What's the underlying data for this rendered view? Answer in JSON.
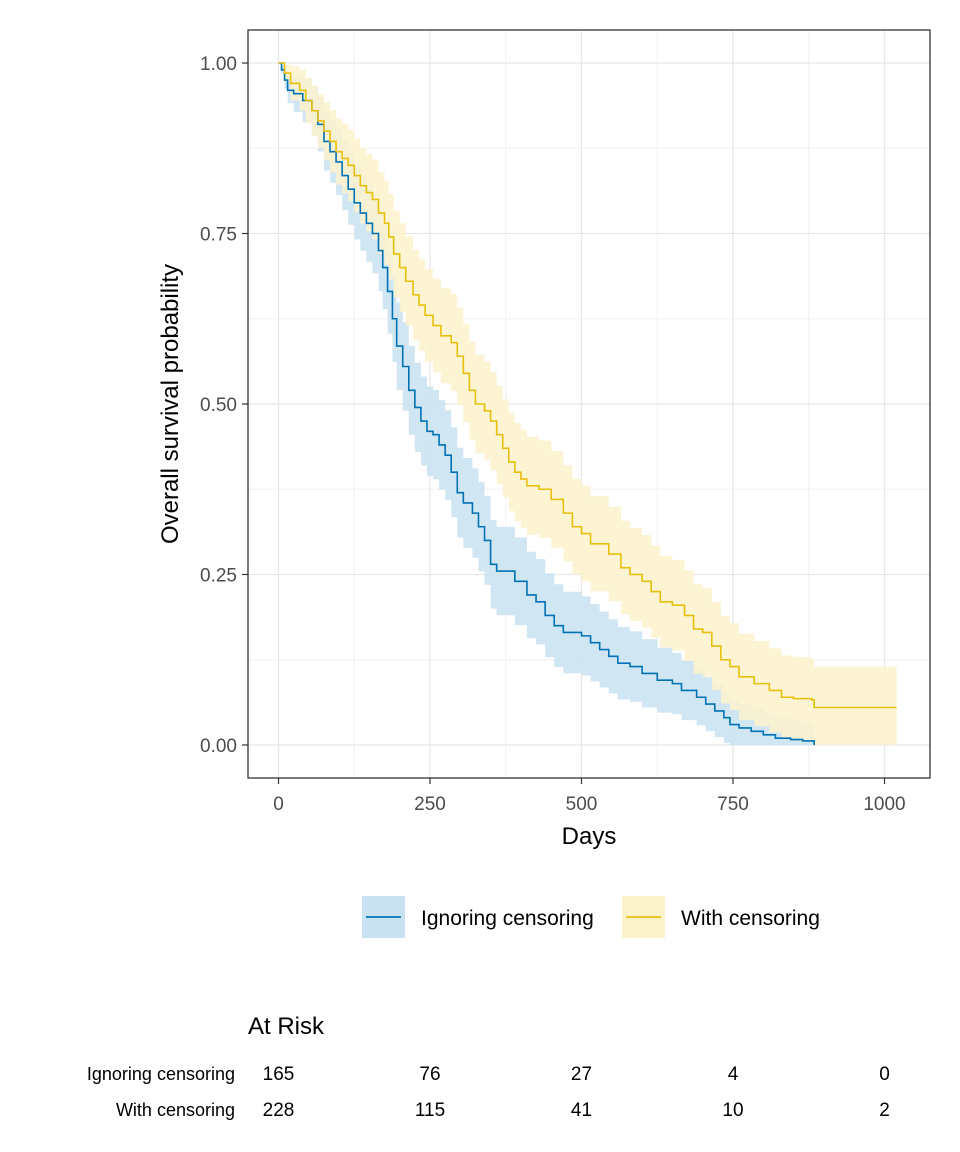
{
  "chart_data": {
    "type": "line",
    "subtype": "kaplan-meier step curves with confidence bands",
    "xlabel": "Days",
    "ylabel": "Overall survival probability",
    "xlim": [
      -10,
      1080
    ],
    "ylim": [
      -0.048,
      1.048
    ],
    "x_ticks": [
      0,
      250,
      500,
      750,
      1000
    ],
    "x_tick_labels": [
      "0",
      "250",
      "500",
      "750",
      "1000"
    ],
    "y_ticks": [
      0,
      0.25,
      0.5,
      0.75,
      1
    ],
    "y_tick_labels": [
      "0.00",
      "0.25",
      "0.50",
      "0.75",
      "1.00"
    ],
    "grid": true,
    "legend_position": "bottom",
    "series": [
      {
        "name": "Ignoring censoring",
        "color": "#0072B5",
        "band_color": "#C9E2F1",
        "points": [
          [
            0,
            1.0
          ],
          [
            5,
            0.99
          ],
          [
            10,
            0.975
          ],
          [
            15,
            0.96
          ],
          [
            25,
            0.955
          ],
          [
            40,
            0.945
          ],
          [
            55,
            0.93
          ],
          [
            65,
            0.91
          ],
          [
            75,
            0.885
          ],
          [
            85,
            0.87
          ],
          [
            95,
            0.855
          ],
          [
            105,
            0.835
          ],
          [
            115,
            0.815
          ],
          [
            125,
            0.795
          ],
          [
            135,
            0.78
          ],
          [
            145,
            0.765
          ],
          [
            155,
            0.75
          ],
          [
            165,
            0.725
          ],
          [
            172,
            0.7
          ],
          [
            180,
            0.665
          ],
          [
            188,
            0.625
          ],
          [
            195,
            0.585
          ],
          [
            205,
            0.555
          ],
          [
            215,
            0.52
          ],
          [
            225,
            0.495
          ],
          [
            235,
            0.475
          ],
          [
            245,
            0.46
          ],
          [
            255,
            0.455
          ],
          [
            265,
            0.44
          ],
          [
            275,
            0.425
          ],
          [
            285,
            0.4
          ],
          [
            295,
            0.37
          ],
          [
            305,
            0.355
          ],
          [
            320,
            0.34
          ],
          [
            330,
            0.32
          ],
          [
            340,
            0.3
          ],
          [
            350,
            0.265
          ],
          [
            360,
            0.255
          ],
          [
            390,
            0.24
          ],
          [
            410,
            0.22
          ],
          [
            425,
            0.21
          ],
          [
            440,
            0.19
          ],
          [
            455,
            0.175
          ],
          [
            470,
            0.165
          ],
          [
            500,
            0.16
          ],
          [
            515,
            0.15
          ],
          [
            530,
            0.14
          ],
          [
            545,
            0.13
          ],
          [
            560,
            0.12
          ],
          [
            580,
            0.115
          ],
          [
            600,
            0.105
          ],
          [
            625,
            0.095
          ],
          [
            650,
            0.09
          ],
          [
            665,
            0.08
          ],
          [
            690,
            0.07
          ],
          [
            705,
            0.06
          ],
          [
            720,
            0.05
          ],
          [
            735,
            0.04
          ],
          [
            745,
            0.03
          ],
          [
            760,
            0.025
          ],
          [
            780,
            0.02
          ],
          [
            800,
            0.015
          ],
          [
            820,
            0.01
          ],
          [
            845,
            0.008
          ],
          [
            865,
            0.006
          ],
          [
            884,
            0.0
          ]
        ],
        "ci_width": [
          [
            0,
            0.0
          ],
          [
            20,
            0.025
          ],
          [
            50,
            0.035
          ],
          [
            100,
            0.05
          ],
          [
            200,
            0.065
          ],
          [
            300,
            0.066
          ],
          [
            400,
            0.064
          ],
          [
            500,
            0.058
          ],
          [
            600,
            0.05
          ],
          [
            700,
            0.04
          ],
          [
            800,
            0.032
          ],
          [
            884,
            0.025
          ]
        ]
      },
      {
        "name": "With censoring",
        "color": "#E9BF0E",
        "band_color": "#FBF2CB",
        "points": [
          [
            0,
            1.0
          ],
          [
            10,
            0.985
          ],
          [
            20,
            0.97
          ],
          [
            35,
            0.96
          ],
          [
            45,
            0.945
          ],
          [
            55,
            0.93
          ],
          [
            65,
            0.915
          ],
          [
            75,
            0.9
          ],
          [
            85,
            0.885
          ],
          [
            95,
            0.87
          ],
          [
            105,
            0.86
          ],
          [
            115,
            0.85
          ],
          [
            125,
            0.835
          ],
          [
            135,
            0.82
          ],
          [
            145,
            0.81
          ],
          [
            155,
            0.8
          ],
          [
            165,
            0.78
          ],
          [
            175,
            0.765
          ],
          [
            182,
            0.745
          ],
          [
            190,
            0.72
          ],
          [
            200,
            0.7
          ],
          [
            210,
            0.68
          ],
          [
            222,
            0.66
          ],
          [
            232,
            0.645
          ],
          [
            242,
            0.63
          ],
          [
            255,
            0.615
          ],
          [
            268,
            0.6
          ],
          [
            285,
            0.59
          ],
          [
            295,
            0.57
          ],
          [
            305,
            0.545
          ],
          [
            315,
            0.52
          ],
          [
            325,
            0.5
          ],
          [
            340,
            0.49
          ],
          [
            350,
            0.475
          ],
          [
            360,
            0.455
          ],
          [
            370,
            0.435
          ],
          [
            380,
            0.415
          ],
          [
            390,
            0.4
          ],
          [
            400,
            0.39
          ],
          [
            410,
            0.38
          ],
          [
            430,
            0.375
          ],
          [
            450,
            0.36
          ],
          [
            470,
            0.34
          ],
          [
            485,
            0.32
          ],
          [
            500,
            0.31
          ],
          [
            515,
            0.295
          ],
          [
            545,
            0.28
          ],
          [
            565,
            0.26
          ],
          [
            580,
            0.25
          ],
          [
            600,
            0.24
          ],
          [
            615,
            0.225
          ],
          [
            630,
            0.21
          ],
          [
            650,
            0.205
          ],
          [
            670,
            0.19
          ],
          [
            685,
            0.17
          ],
          [
            700,
            0.165
          ],
          [
            715,
            0.145
          ],
          [
            730,
            0.125
          ],
          [
            745,
            0.115
          ],
          [
            760,
            0.1
          ],
          [
            785,
            0.09
          ],
          [
            810,
            0.08
          ],
          [
            830,
            0.07
          ],
          [
            850,
            0.068
          ],
          [
            880,
            0.066
          ],
          [
            884,
            0.055
          ],
          [
            1020,
            0.055
          ]
        ],
        "ci_width": [
          [
            0,
            0.0
          ],
          [
            20,
            0.025
          ],
          [
            50,
            0.035
          ],
          [
            100,
            0.05
          ],
          [
            200,
            0.065
          ],
          [
            300,
            0.072
          ],
          [
            400,
            0.072
          ],
          [
            500,
            0.07
          ],
          [
            600,
            0.068
          ],
          [
            700,
            0.065
          ],
          [
            800,
            0.062
          ],
          [
            884,
            0.06
          ],
          [
            1020,
            0.068
          ]
        ]
      }
    ],
    "risk_table": {
      "title": "At Risk",
      "times": [
        0,
        250,
        500,
        750,
        1000
      ],
      "rows": [
        {
          "label": "Ignoring censoring",
          "counts": [
            "165",
            "76",
            "27",
            "4",
            "0"
          ]
        },
        {
          "label": "With censoring",
          "counts": [
            "228",
            "115",
            "41",
            "10",
            "2"
          ]
        }
      ]
    }
  }
}
